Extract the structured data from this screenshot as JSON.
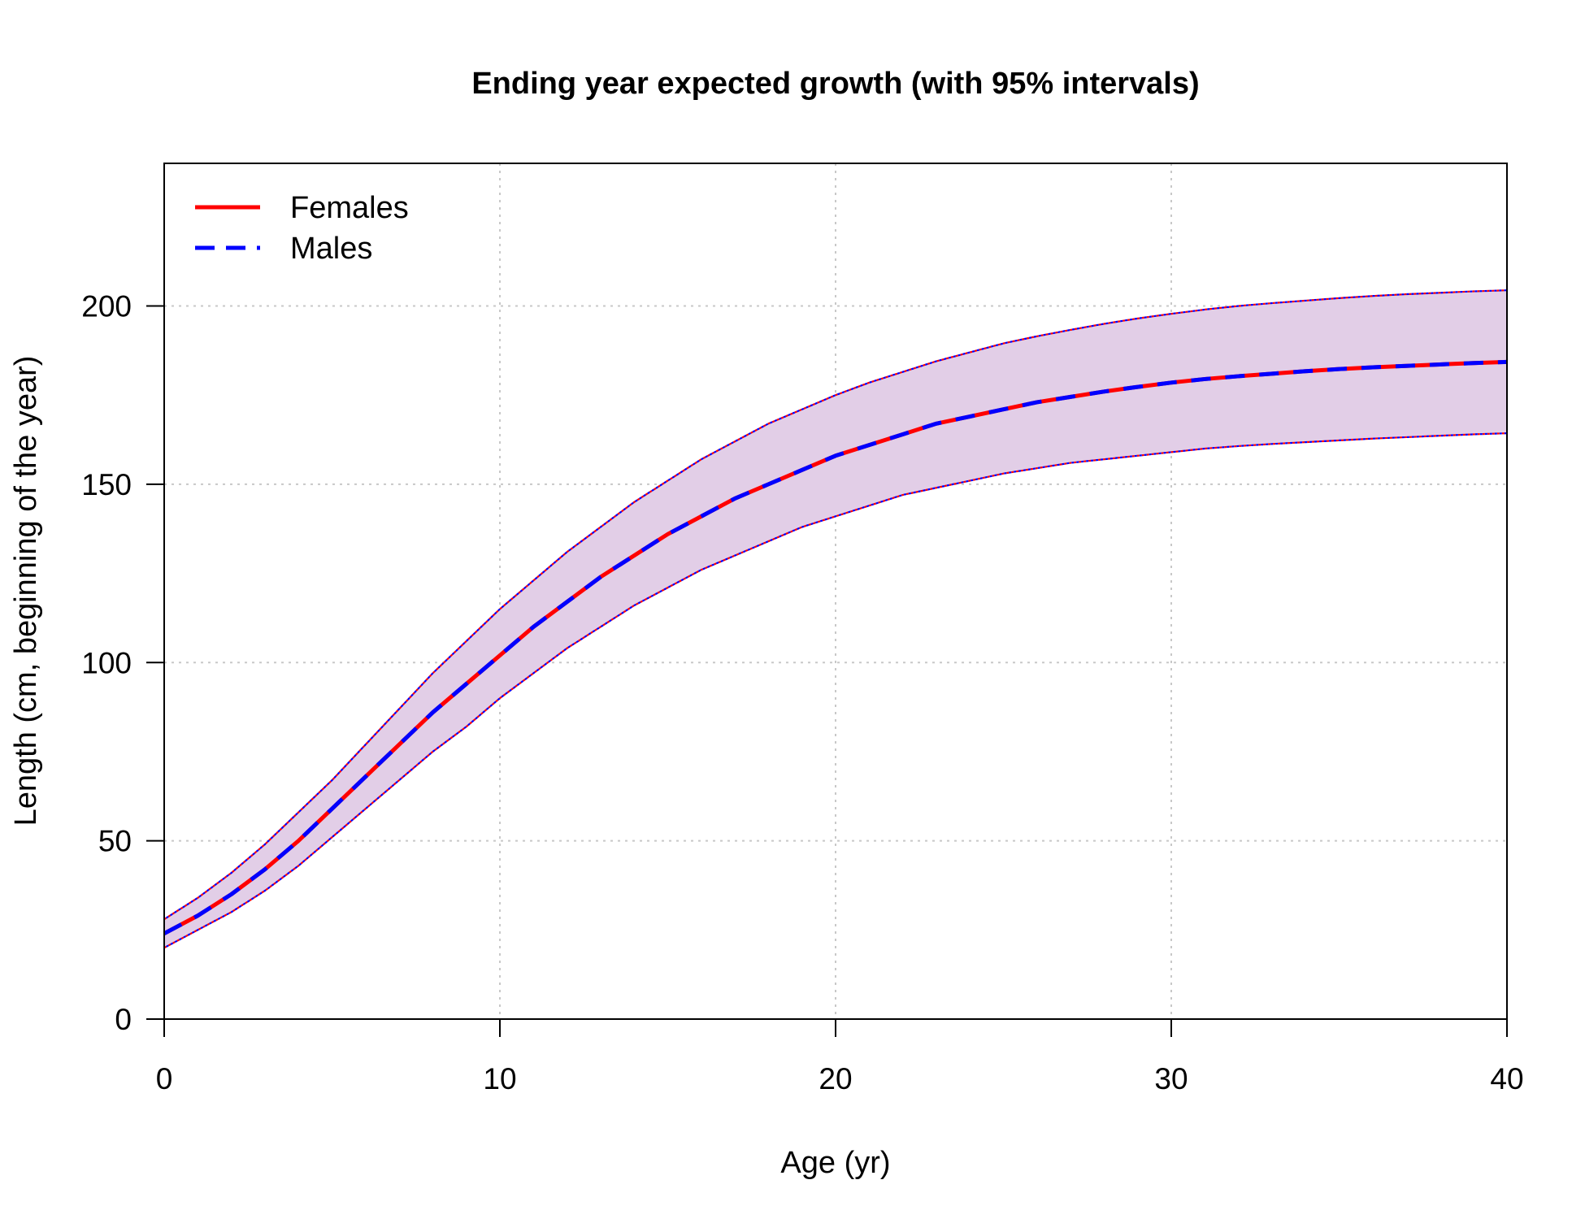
{
  "chart_data": {
    "type": "line",
    "title": "Ending year expected growth (with 95% intervals)",
    "xlabel": "Age (yr)",
    "ylabel": "Length (cm, beginning of the year)",
    "xlim": [
      0,
      40
    ],
    "ylim": [
      0,
      240
    ],
    "x_ticks": [
      0,
      10,
      20,
      30,
      40
    ],
    "y_ticks": [
      0,
      50,
      100,
      150,
      200
    ],
    "x_tick_labels": [
      "0",
      "10",
      "20",
      "30",
      "40"
    ],
    "y_tick_labels": [
      "0",
      "50",
      "100",
      "150",
      "200"
    ],
    "grid": true,
    "legend_position": "top-left",
    "interval_fill_color": "#e2cee7",
    "x": [
      0,
      1,
      2,
      3,
      4,
      5,
      6,
      7,
      8,
      9,
      10,
      11,
      12,
      13,
      14,
      15,
      16,
      17,
      18,
      19,
      20,
      21,
      22,
      23,
      24,
      25,
      26,
      27,
      28,
      29,
      30,
      31,
      32,
      33,
      34,
      35,
      36,
      37,
      38,
      39,
      40
    ],
    "series": [
      {
        "name": "Females",
        "color": "#ff0000",
        "line_style": "solid",
        "values": [
          24,
          29,
          35,
          42,
          50,
          59,
          68,
          77,
          86,
          94,
          102,
          110,
          117,
          124,
          130,
          136,
          141,
          146,
          150,
          154,
          158,
          161,
          164,
          167,
          169,
          171,
          173,
          174.5,
          176,
          177.3,
          178.5,
          179.5,
          180.3,
          181,
          181.7,
          182.3,
          182.8,
          183.2,
          183.6,
          184,
          184.3
        ],
        "lower": [
          20,
          25,
          30,
          36,
          43,
          51,
          59,
          67,
          75,
          82,
          90,
          97,
          104,
          110,
          116,
          121,
          126,
          130,
          134,
          138,
          141,
          144,
          147,
          149,
          151,
          153,
          154.5,
          156,
          157,
          158,
          159,
          160,
          160.7,
          161.3,
          161.8,
          162.3,
          162.8,
          163.2,
          163.6,
          164,
          164.3
        ],
        "upper": [
          28,
          34,
          41,
          49,
          58,
          67,
          77,
          87,
          97,
          106,
          115,
          123,
          131,
          138,
          145,
          151,
          157,
          162,
          167,
          171,
          175,
          178.5,
          181.5,
          184.5,
          187,
          189.5,
          191.5,
          193.3,
          195,
          196.5,
          197.8,
          199,
          200,
          200.8,
          201.5,
          202.2,
          202.8,
          203.3,
          203.7,
          204.1,
          204.4
        ]
      },
      {
        "name": "Males",
        "color": "#0000ff",
        "line_style": "dashed",
        "values": [
          24,
          29,
          35,
          42,
          50,
          59,
          68,
          77,
          86,
          94,
          102,
          110,
          117,
          124,
          130,
          136,
          141,
          146,
          150,
          154,
          158,
          161,
          164,
          167,
          169,
          171,
          173,
          174.5,
          176,
          177.3,
          178.5,
          179.5,
          180.3,
          181,
          181.7,
          182.3,
          182.8,
          183.2,
          183.6,
          184,
          184.3
        ],
        "lower": [
          20,
          25,
          30,
          36,
          43,
          51,
          59,
          67,
          75,
          82,
          90,
          97,
          104,
          110,
          116,
          121,
          126,
          130,
          134,
          138,
          141,
          144,
          147,
          149,
          151,
          153,
          154.5,
          156,
          157,
          158,
          159,
          160,
          160.7,
          161.3,
          161.8,
          162.3,
          162.8,
          163.2,
          163.6,
          164,
          164.3
        ],
        "upper": [
          28,
          34,
          41,
          49,
          58,
          67,
          77,
          87,
          97,
          106,
          115,
          123,
          131,
          138,
          145,
          151,
          157,
          162,
          167,
          171,
          175,
          178.5,
          181.5,
          184.5,
          187,
          189.5,
          191.5,
          193.3,
          195,
          196.5,
          197.8,
          199,
          200,
          200.8,
          201.5,
          202.2,
          202.8,
          203.3,
          203.7,
          204.1,
          204.4
        ]
      }
    ]
  }
}
